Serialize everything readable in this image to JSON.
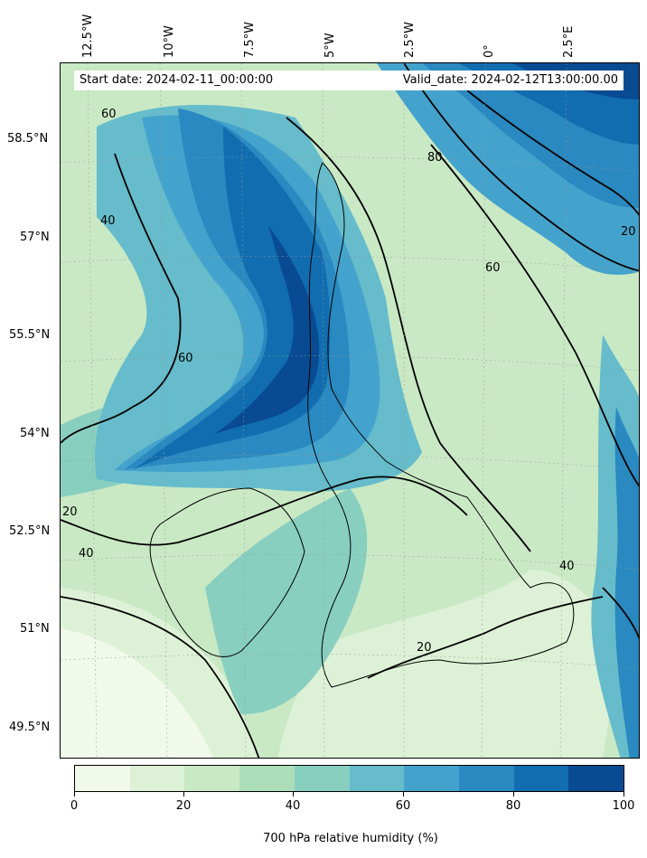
{
  "header": {
    "start_date": "Start date: 2024-02-11_00:00:00",
    "valid_date": "Valid_date: 2024-02-12T13:00:00.00"
  },
  "longitude_labels": [
    "12.5°W",
    "10°W",
    "7.5°W",
    "5°W",
    "2.5°W",
    "0°",
    "2.5°E"
  ],
  "latitude_labels": [
    "58.5°N",
    "57°N",
    "55.5°N",
    "54°N",
    "52.5°N",
    "51°N",
    "49.5°N"
  ],
  "contour_labels": [
    "20",
    "40",
    "60",
    "80"
  ],
  "colorbar": {
    "title": "700 hPa relative humidity (%)",
    "tick_labels": [
      "0",
      "20",
      "40",
      "60",
      "80",
      "100"
    ],
    "colors": [
      "#f1f9ea",
      "#ddf1d6",
      "#c9e9c4",
      "#acdeba",
      "#88cfc0",
      "#66bccb",
      "#44a3cc",
      "#2989c0",
      "#116db0",
      "#084b92"
    ]
  }
}
